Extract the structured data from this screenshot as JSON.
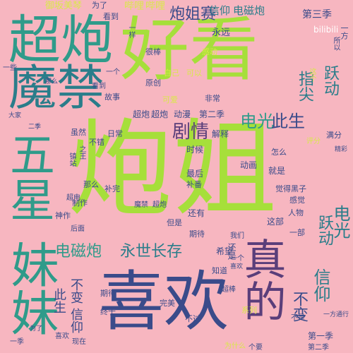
{
  "background": "#f7b6c0",
  "palette": [
    "#a6df3a",
    "#2a7d8a",
    "#3a4b8a",
    "#2f9b8a",
    "#7ccf52",
    "#5a3e7a",
    "#d9e84a",
    "#c9d94e"
  ],
  "words": [
    {
      "text": "炮姐"
    },
    {
      "text": "好看"
    },
    {
      "text": "喜欢"
    },
    {
      "text": "超炮"
    },
    {
      "text": "魔禁"
    },
    {
      "text": "妹妹"
    },
    {
      "text": "五星"
    },
    {
      "text": "真的"
    },
    {
      "text": "炮姐赛"
    },
    {
      "text": "电光"
    },
    {
      "text": "此生"
    },
    {
      "text": "剧情"
    },
    {
      "text": "永世长存"
    },
    {
      "text": "电磁炮"
    },
    {
      "text": "跃动"
    },
    {
      "text": "指尖"
    },
    {
      "text": "信仰"
    },
    {
      "text": "不变"
    },
    {
      "text": "电光"
    },
    {
      "text": "跃动"
    },
    {
      "text": "此生"
    },
    {
      "text": "不变"
    },
    {
      "text": "信仰"
    },
    {
      "text": "御坂美琴"
    },
    {
      "text": "哔哩"
    },
    {
      "text": "哔哩"
    },
    {
      "text": "信仰"
    },
    {
      "text": "电磁炮"
    },
    {
      "text": "第三季"
    },
    {
      "text": "永远"
    },
    {
      "text": "bilibili"
    },
    {
      "text": "一方"
    },
    {
      "text": "超炮"
    },
    {
      "text": "超炮"
    },
    {
      "text": "动漫"
    },
    {
      "text": "第二季"
    },
    {
      "text": "日常"
    },
    {
      "text": "解释"
    },
    {
      "text": "时候"
    },
    {
      "text": "动画"
    },
    {
      "text": "不错"
    },
    {
      "text": "最后"
    },
    {
      "text": "补完"
    },
    {
      "text": "补番"
    },
    {
      "text": "还有"
    },
    {
      "text": "但是"
    },
    {
      "text": "这部"
    },
    {
      "text": "一部"
    },
    {
      "text": "希望"
    },
    {
      "text": "知道"
    },
    {
      "text": "完美"
    },
    {
      "text": "不过"
    },
    {
      "text": "系列"
    },
    {
      "text": "看到"
    },
    {
      "text": "为了"
    },
    {
      "text": "一些"
    },
    {
      "text": "很棒"
    },
    {
      "text": "感动"
    },
    {
      "text": "原创"
    },
    {
      "text": "非常"
    },
    {
      "text": "可以"
    },
    {
      "text": "自己"
    },
    {
      "text": "故事"
    },
    {
      "text": "可爱"
    },
    {
      "text": "满分"
    },
    {
      "text": "评分"
    },
    {
      "text": "精彩"
    },
    {
      "text": "怎么"
    },
    {
      "text": "就是"
    },
    {
      "text": "觉得"
    },
    {
      "text": "感觉"
    },
    {
      "text": "黑子"
    },
    {
      "text": "人物"
    },
    {
      "text": "那么"
    },
    {
      "text": "制作"
    },
    {
      "text": "神作"
    },
    {
      "text": "期待"
    },
    {
      "text": "终于"
    },
    {
      "text": "现在"
    },
    {
      "text": "喜欢"
    },
    {
      "text": "魔禁"
    },
    {
      "text": "超炮"
    },
    {
      "text": "我们"
    },
    {
      "text": "一个"
    },
    {
      "text": "还是"
    },
    {
      "text": "不是"
    },
    {
      "text": "第一季"
    },
    {
      "text": "为什么"
    },
    {
      "text": "个要"
    },
    {
      "text": "一样"
    },
    {
      "text": "这个"
    },
    {
      "text": "所以"
    },
    {
      "text": "虽然"
    },
    {
      "text": "之王"
    },
    {
      "text": "镇站"
    },
    {
      "text": "超棒"
    },
    {
      "text": "一方通行"
    },
    {
      "text": "后面"
    },
    {
      "text": "大家"
    },
    {
      "text": "期待"
    },
    {
      "text": "二季"
    },
    {
      "text": "第二季"
    },
    {
      "text": "一季"
    },
    {
      "text": "那么"
    },
    {
      "text": "超电"
    },
    {
      "text": "喜欢"
    },
    {
      "text": "为了"
    },
    {
      "text": "看到"
    },
    {
      "text": "一个"
    }
  ]
}
